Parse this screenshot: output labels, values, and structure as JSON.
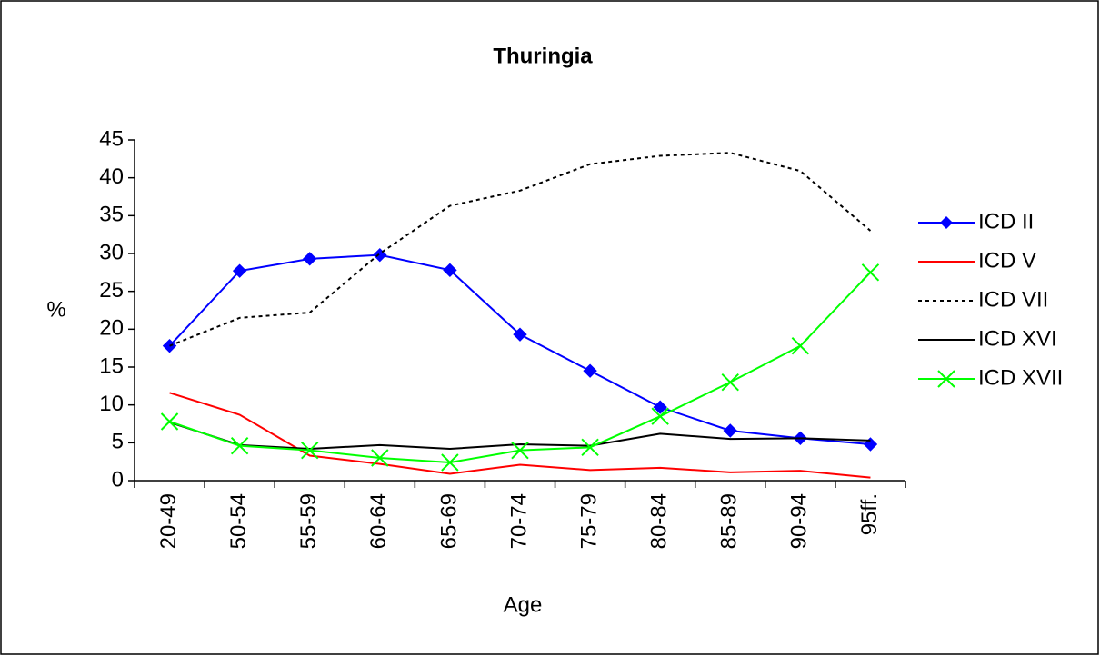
{
  "chart_data": {
    "type": "line",
    "title": "Thuringia",
    "x_label": "Age",
    "y_label": "%",
    "categories": [
      "20-49",
      "50-54",
      "55-59",
      "60-64",
      "65-69",
      "70-74",
      "75-79",
      "80-84",
      "85-89",
      "90-94",
      "95ff."
    ],
    "series": [
      {
        "name": "ICD II",
        "color": "#0000ff",
        "style": "solid",
        "marker": "diamond",
        "values": [
          17.8,
          27.7,
          29.3,
          29.8,
          27.8,
          19.3,
          14.5,
          9.7,
          6.6,
          5.6,
          4.8
        ]
      },
      {
        "name": "ICD V",
        "color": "#ff0000",
        "style": "solid",
        "marker": "none",
        "values": [
          11.6,
          8.7,
          3.3,
          2.2,
          0.9,
          2.1,
          1.4,
          1.7,
          1.1,
          1.3,
          0.4
        ]
      },
      {
        "name": "ICD VII",
        "color": "#000000",
        "style": "dashed",
        "marker": "none",
        "values": [
          17.8,
          21.5,
          22.2,
          30.0,
          36.3,
          38.3,
          41.8,
          42.9,
          43.3,
          40.9,
          33.0
        ]
      },
      {
        "name": "ICD XVI",
        "color": "#000000",
        "style": "solid",
        "marker": "none",
        "values": [
          7.7,
          4.7,
          4.2,
          4.7,
          4.2,
          4.8,
          4.6,
          6.2,
          5.5,
          5.6,
          5.3
        ]
      },
      {
        "name": "ICD XVII",
        "color": "#00ff00",
        "style": "solid",
        "marker": "x",
        "values": [
          7.8,
          4.6,
          4.0,
          3.0,
          2.4,
          4.0,
          4.4,
          8.5,
          13.0,
          17.8,
          27.5
        ]
      }
    ],
    "ylim": [
      0,
      45
    ],
    "yticks": [
      0,
      5,
      10,
      15,
      20,
      25,
      30,
      35,
      40,
      45
    ],
    "grid": false,
    "legend": "right"
  }
}
